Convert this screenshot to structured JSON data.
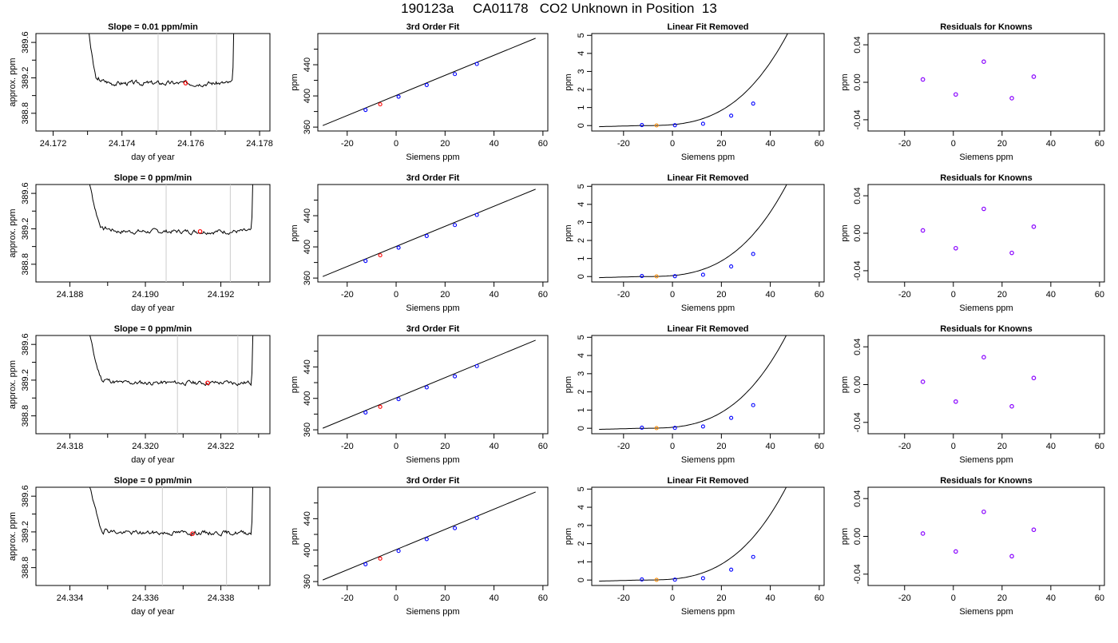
{
  "figure": {
    "title": "190123a     CA01178   CO2 Unknown in Position  13"
  },
  "colors": {
    "trace": "#000000",
    "marker_lines": "#cccccc",
    "known_points": "#0000ff",
    "unknown_point": "#ff0000",
    "unknown_point_residual": "#ff8c00",
    "residual_points": "#8800ff"
  },
  "chart_data": [
    {
      "type": "line",
      "panel": "trace",
      "title": "Slope =  0.01  ppm/min",
      "xlabel": "day of year",
      "ylabel": "approx. ppm",
      "xlim": [
        24.1715,
        24.1783
      ],
      "ylim": [
        388.6,
        389.7
      ],
      "xticks": [
        24.172,
        24.174,
        24.176,
        24.178
      ],
      "xtick_labels": [
        "24.172",
        "24.174",
        "24.176",
        "24.178"
      ],
      "yticks": [
        388.8,
        389.2,
        389.6
      ],
      "ytick_labels": [
        "388.8",
        "389.2",
        "389.6"
      ],
      "trace": {
        "x0": 24.1729,
        "x1": 24.1773,
        "level": 389.14,
        "drop_end": 24.1733,
        "rise_start": 24.1772,
        "seed": 3
      },
      "vlines": [
        24.17505,
        24.17675
      ],
      "unknown_marker": {
        "x": 24.17585,
        "y": 389.14
      }
    },
    {
      "type": "scatter",
      "panel": "fit",
      "title": "3rd Order Fit",
      "xlabel": "Siemens ppm",
      "ylabel": "ppm",
      "xlim": [
        -32,
        62
      ],
      "ylim": [
        355,
        480
      ],
      "xticks": [
        -20,
        0,
        20,
        40,
        60
      ],
      "xtick_labels": [
        "-20",
        "0",
        "20",
        "40",
        "60"
      ],
      "yticks": [
        360,
        400,
        440
      ],
      "ytick_labels": [
        "360",
        "400",
        "440"
      ],
      "line": {
        "x": [
          -30,
          57
        ],
        "y": [
          362,
          474
        ]
      },
      "points": [
        {
          "x": -12.5,
          "y": 382,
          "kind": "known"
        },
        {
          "x": 1,
          "y": 399,
          "kind": "known"
        },
        {
          "x": 12.5,
          "y": 414,
          "kind": "known"
        },
        {
          "x": 24,
          "y": 428,
          "kind": "known"
        },
        {
          "x": 33,
          "y": 441,
          "kind": "known"
        },
        {
          "x": -6.5,
          "y": 389.2,
          "kind": "unknown"
        }
      ]
    },
    {
      "type": "line",
      "panel": "linear-removed",
      "title": "Linear Fit Removed",
      "xlabel": "Siemens ppm",
      "ylabel": "ppm",
      "xlim": [
        -33,
        62
      ],
      "ylim": [
        -0.3,
        5.1
      ],
      "xticks": [
        -20,
        0,
        20,
        40,
        60
      ],
      "xtick_labels": [
        "-20",
        "0",
        "20",
        "40",
        "60"
      ],
      "yticks": [
        0,
        1,
        2,
        3,
        4,
        5
      ],
      "ytick_labels": [
        "0",
        "1",
        "2",
        "3",
        "4",
        "5"
      ],
      "curve": {
        "x0": -30,
        "x1": 57,
        "c": 2.35e-05,
        "x_center": -13,
        "offset": 0.0
      },
      "points": [
        {
          "x": -12.5,
          "y": 0.03,
          "kind": "known"
        },
        {
          "x": 1,
          "y": 0.02,
          "kind": "known"
        },
        {
          "x": 12.5,
          "y": 0.1,
          "kind": "known"
        },
        {
          "x": 24,
          "y": 0.55,
          "kind": "known"
        },
        {
          "x": 33,
          "y": 1.22,
          "kind": "known"
        },
        {
          "x": -6.5,
          "y": 0.01,
          "kind": "unknown"
        }
      ]
    },
    {
      "type": "scatter",
      "panel": "residuals",
      "title": "Residuals for Knowns",
      "xlabel": "Siemens ppm",
      "ylabel": "ppm",
      "xlim": [
        -35,
        62
      ],
      "ylim": [
        -0.052,
        0.052
      ],
      "xticks": [
        -20,
        0,
        20,
        40,
        60
      ],
      "xtick_labels": [
        "-20",
        "0",
        "20",
        "40",
        "60"
      ],
      "yticks": [
        -0.04,
        0,
        0.04
      ],
      "ytick_labels": [
        "-0.04",
        "0.00",
        "0.04"
      ],
      "points": [
        {
          "x": -12.5,
          "y": 0.003
        },
        {
          "x": 1,
          "y": -0.013
        },
        {
          "x": 12.5,
          "y": 0.022
        },
        {
          "x": 24,
          "y": -0.017
        },
        {
          "x": 33,
          "y": 0.006
        }
      ]
    },
    {
      "type": "line",
      "panel": "trace",
      "title": "Slope =  0  ppm/min",
      "xlabel": "day of year",
      "ylabel": "approx. ppm",
      "xlim": [
        24.1871,
        24.1933
      ],
      "ylim": [
        388.6,
        389.7
      ],
      "xticks": [
        24.188,
        24.19,
        24.192
      ],
      "xtick_labels": [
        "24.188",
        "24.190",
        "24.192"
      ],
      "yticks": [
        388.8,
        389.2,
        389.6
      ],
      "ytick_labels": [
        "388.8",
        "389.2",
        "389.6"
      ],
      "trace": {
        "x0": 24.1883,
        "x1": 24.1929,
        "level": 389.17,
        "drop_end": 24.1889,
        "rise_start": 24.1928,
        "seed": 7
      },
      "vlines": [
        24.19055,
        24.19225
      ],
      "unknown_marker": {
        "x": 24.19145,
        "y": 389.17
      }
    },
    {
      "type": "scatter",
      "panel": "fit",
      "title": "3rd Order Fit",
      "xlabel": "Siemens ppm",
      "ylabel": "ppm",
      "xlim": [
        -32,
        62
      ],
      "ylim": [
        355,
        480
      ],
      "xticks": [
        -20,
        0,
        20,
        40,
        60
      ],
      "xtick_labels": [
        "-20",
        "0",
        "20",
        "40",
        "60"
      ],
      "yticks": [
        360,
        400,
        440
      ],
      "ytick_labels": [
        "360",
        "400",
        "440"
      ],
      "line": {
        "x": [
          -30,
          57
        ],
        "y": [
          362,
          474
        ]
      },
      "points": [
        {
          "x": -12.5,
          "y": 382,
          "kind": "known"
        },
        {
          "x": 1,
          "y": 399,
          "kind": "known"
        },
        {
          "x": 12.5,
          "y": 414,
          "kind": "known"
        },
        {
          "x": 24,
          "y": 428,
          "kind": "known"
        },
        {
          "x": 33,
          "y": 441,
          "kind": "known"
        },
        {
          "x": -6.5,
          "y": 389.2,
          "kind": "unknown"
        }
      ]
    },
    {
      "type": "line",
      "panel": "linear-removed",
      "title": "Linear Fit Removed",
      "xlabel": "Siemens ppm",
      "ylabel": "ppm",
      "xlim": [
        -33,
        62
      ],
      "ylim": [
        -0.3,
        5.1
      ],
      "xticks": [
        -20,
        0,
        20,
        40,
        60
      ],
      "xtick_labels": [
        "-20",
        "0",
        "20",
        "40",
        "60"
      ],
      "yticks": [
        0,
        1,
        2,
        3,
        4,
        5
      ],
      "ytick_labels": [
        "0",
        "1",
        "2",
        "3",
        "4",
        "5"
      ],
      "curve": {
        "x0": -30,
        "x1": 57,
        "c": 2.4e-05,
        "x_center": -13,
        "offset": 0.0
      },
      "points": [
        {
          "x": -12.5,
          "y": 0.03,
          "kind": "known"
        },
        {
          "x": 1,
          "y": 0.02,
          "kind": "known"
        },
        {
          "x": 12.5,
          "y": 0.1,
          "kind": "known"
        },
        {
          "x": 24,
          "y": 0.56,
          "kind": "known"
        },
        {
          "x": 33,
          "y": 1.25,
          "kind": "known"
        },
        {
          "x": -6.5,
          "y": 0.01,
          "kind": "unknown"
        }
      ]
    },
    {
      "type": "scatter",
      "panel": "residuals",
      "title": "Residuals for Knowns",
      "xlabel": "Siemens ppm",
      "ylabel": "ppm",
      "xlim": [
        -35,
        62
      ],
      "ylim": [
        -0.052,
        0.052
      ],
      "xticks": [
        -20,
        0,
        20,
        40,
        60
      ],
      "xtick_labels": [
        "-20",
        "0",
        "20",
        "40",
        "60"
      ],
      "yticks": [
        -0.04,
        0,
        0.04
      ],
      "ytick_labels": [
        "-0.04",
        "0.00",
        "0.04"
      ],
      "points": [
        {
          "x": -12.5,
          "y": 0.003
        },
        {
          "x": 1,
          "y": -0.016
        },
        {
          "x": 12.5,
          "y": 0.026
        },
        {
          "x": 24,
          "y": -0.021
        },
        {
          "x": 33,
          "y": 0.007
        }
      ]
    },
    {
      "type": "line",
      "panel": "trace",
      "title": "Slope =  0  ppm/min",
      "xlabel": "day of year",
      "ylabel": "approx. ppm",
      "xlim": [
        24.3171,
        24.3233
      ],
      "ylim": [
        388.6,
        389.7
      ],
      "xticks": [
        24.318,
        24.32,
        24.322
      ],
      "xtick_labels": [
        "24.318",
        "24.320",
        "24.322"
      ],
      "yticks": [
        388.8,
        389.2,
        389.6
      ],
      "ytick_labels": [
        "388.8",
        "389.2",
        "389.6"
      ],
      "trace": {
        "x0": 24.3183,
        "x1": 24.3229,
        "level": 389.17,
        "drop_end": 24.3189,
        "rise_start": 24.3228,
        "seed": 11
      },
      "vlines": [
        24.32085,
        24.32245
      ],
      "unknown_marker": {
        "x": 24.32165,
        "y": 389.17
      }
    },
    {
      "type": "scatter",
      "panel": "fit",
      "title": "3rd Order Fit",
      "xlabel": "Siemens ppm",
      "ylabel": "ppm",
      "xlim": [
        -32,
        62
      ],
      "ylim": [
        355,
        480
      ],
      "xticks": [
        -20,
        0,
        20,
        40,
        60
      ],
      "xtick_labels": [
        "-20",
        "0",
        "20",
        "40",
        "60"
      ],
      "yticks": [
        360,
        400,
        440
      ],
      "ytick_labels": [
        "360",
        "400",
        "440"
      ],
      "line": {
        "x": [
          -30,
          57
        ],
        "y": [
          362,
          474
        ]
      },
      "points": [
        {
          "x": -12.5,
          "y": 382,
          "kind": "known"
        },
        {
          "x": 1,
          "y": 399,
          "kind": "known"
        },
        {
          "x": 12.5,
          "y": 414,
          "kind": "known"
        },
        {
          "x": 24,
          "y": 428,
          "kind": "known"
        },
        {
          "x": 33,
          "y": 441,
          "kind": "known"
        },
        {
          "x": -6.5,
          "y": 389.2,
          "kind": "unknown"
        }
      ]
    },
    {
      "type": "line",
      "panel": "linear-removed",
      "title": "Linear Fit Removed",
      "xlabel": "Siemens ppm",
      "ylabel": "ppm",
      "xlim": [
        -33,
        62
      ],
      "ylim": [
        -0.3,
        5.1
      ],
      "xticks": [
        -20,
        0,
        20,
        40,
        60
      ],
      "xtick_labels": [
        "-20",
        "0",
        "20",
        "40",
        "60"
      ],
      "yticks": [
        0,
        1,
        2,
        3,
        4,
        5
      ],
      "ytick_labels": [
        "0",
        "1",
        "2",
        "3",
        "4",
        "5"
      ],
      "curve": {
        "x0": -30,
        "x1": 57,
        "c": 2.42e-05,
        "x_center": -13,
        "offset": 0.0
      },
      "points": [
        {
          "x": -12.5,
          "y": 0.03,
          "kind": "known"
        },
        {
          "x": 1,
          "y": 0.02,
          "kind": "known"
        },
        {
          "x": 12.5,
          "y": 0.1,
          "kind": "known"
        },
        {
          "x": 24,
          "y": 0.57,
          "kind": "known"
        },
        {
          "x": 33,
          "y": 1.27,
          "kind": "known"
        },
        {
          "x": -6.5,
          "y": 0.01,
          "kind": "unknown"
        }
      ]
    },
    {
      "type": "scatter",
      "panel": "residuals",
      "title": "Residuals for Knowns",
      "xlabel": "Siemens ppm",
      "ylabel": "ppm",
      "xlim": [
        -35,
        62
      ],
      "ylim": [
        -0.052,
        0.052
      ],
      "xticks": [
        -20,
        0,
        20,
        40,
        60
      ],
      "xtick_labels": [
        "-20",
        "0",
        "20",
        "40",
        "60"
      ],
      "yticks": [
        -0.04,
        0,
        0.04
      ],
      "ytick_labels": [
        "-0.04",
        "0.00",
        "0.04"
      ],
      "points": [
        {
          "x": -12.5,
          "y": 0.003
        },
        {
          "x": 1,
          "y": -0.018
        },
        {
          "x": 12.5,
          "y": 0.029
        },
        {
          "x": 24,
          "y": -0.023
        },
        {
          "x": 33,
          "y": 0.007
        }
      ]
    },
    {
      "type": "line",
      "panel": "trace",
      "title": "Slope =  0  ppm/min",
      "xlabel": "day of year",
      "ylabel": "approx. ppm",
      "xlim": [
        24.3331,
        24.3393
      ],
      "ylim": [
        388.6,
        389.7
      ],
      "xticks": [
        24.334,
        24.336,
        24.338
      ],
      "xtick_labels": [
        "24.334",
        "24.336",
        "24.338"
      ],
      "yticks": [
        388.8,
        389.2,
        389.6
      ],
      "ytick_labels": [
        "388.8",
        "389.2",
        "389.6"
      ],
      "trace": {
        "x0": 24.3343,
        "x1": 24.3389,
        "level": 389.19,
        "drop_end": 24.3349,
        "rise_start": 24.3388,
        "seed": 19
      },
      "vlines": [
        24.33645,
        24.33815
      ],
      "unknown_marker": {
        "x": 24.33725,
        "y": 389.18
      }
    },
    {
      "type": "scatter",
      "panel": "fit",
      "title": "3rd Order Fit",
      "xlabel": "Siemens ppm",
      "ylabel": "ppm",
      "xlim": [
        -32,
        62
      ],
      "ylim": [
        355,
        480
      ],
      "xticks": [
        -20,
        0,
        20,
        40,
        60
      ],
      "xtick_labels": [
        "-20",
        "0",
        "20",
        "40",
        "60"
      ],
      "yticks": [
        360,
        400,
        440
      ],
      "ytick_labels": [
        "360",
        "400",
        "440"
      ],
      "line": {
        "x": [
          -30,
          57
        ],
        "y": [
          362,
          474
        ]
      },
      "points": [
        {
          "x": -12.5,
          "y": 382,
          "kind": "known"
        },
        {
          "x": 1,
          "y": 399,
          "kind": "known"
        },
        {
          "x": 12.5,
          "y": 414,
          "kind": "known"
        },
        {
          "x": 24,
          "y": 428,
          "kind": "known"
        },
        {
          "x": 33,
          "y": 441,
          "kind": "known"
        },
        {
          "x": -6.5,
          "y": 389.2,
          "kind": "unknown"
        }
      ]
    },
    {
      "type": "line",
      "panel": "linear-removed",
      "title": "Linear Fit Removed",
      "xlabel": "Siemens ppm",
      "ylabel": "ppm",
      "xlim": [
        -33,
        62
      ],
      "ylim": [
        -0.3,
        5.1
      ],
      "xticks": [
        -20,
        0,
        20,
        40,
        60
      ],
      "xtick_labels": [
        "-20",
        "0",
        "20",
        "40",
        "60"
      ],
      "yticks": [
        0,
        1,
        2,
        3,
        4,
        5
      ],
      "ytick_labels": [
        "0",
        "1",
        "2",
        "3",
        "4",
        "5"
      ],
      "curve": {
        "x0": -30,
        "x1": 57,
        "c": 2.42e-05,
        "x_center": -13,
        "offset": 0.0
      },
      "points": [
        {
          "x": -12.5,
          "y": 0.03,
          "kind": "known"
        },
        {
          "x": 1,
          "y": 0.02,
          "kind": "known"
        },
        {
          "x": 12.5,
          "y": 0.1,
          "kind": "known"
        },
        {
          "x": 24,
          "y": 0.57,
          "kind": "known"
        },
        {
          "x": 33,
          "y": 1.27,
          "kind": "known"
        },
        {
          "x": -6.5,
          "y": 0.01,
          "kind": "unknown"
        }
      ]
    },
    {
      "type": "scatter",
      "panel": "residuals",
      "title": "Residuals for Knowns",
      "xlabel": "Siemens ppm",
      "ylabel": "ppm",
      "xlim": [
        -35,
        62
      ],
      "ylim": [
        -0.052,
        0.052
      ],
      "xticks": [
        -20,
        0,
        20,
        40,
        60
      ],
      "xtick_labels": [
        "-20",
        "0",
        "20",
        "40",
        "60"
      ],
      "yticks": [
        -0.04,
        0,
        0.04
      ],
      "ytick_labels": [
        "-0.04",
        "0.00",
        "0.04"
      ],
      "points": [
        {
          "x": -12.5,
          "y": 0.003
        },
        {
          "x": 1,
          "y": -0.016
        },
        {
          "x": 12.5,
          "y": 0.026
        },
        {
          "x": 24,
          "y": -0.021
        },
        {
          "x": 33,
          "y": 0.007
        }
      ]
    }
  ]
}
